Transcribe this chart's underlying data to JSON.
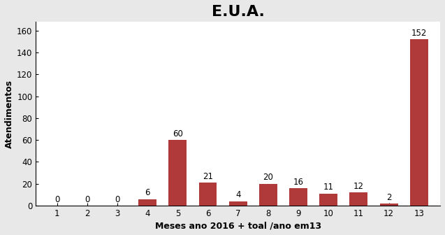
{
  "title": "E.U.A.",
  "xlabel": "Meses ano 2016 + toal /ano em13",
  "ylabel": "Atendimentos",
  "categories": [
    1,
    2,
    3,
    4,
    5,
    6,
    7,
    8,
    9,
    10,
    11,
    12,
    13
  ],
  "values": [
    0,
    0,
    0,
    6,
    60,
    21,
    4,
    20,
    16,
    11,
    12,
    2,
    152
  ],
  "bar_color": "#b03a3a",
  "ylim": [
    0,
    168
  ],
  "yticks": [
    0,
    20,
    40,
    60,
    80,
    100,
    120,
    140,
    160
  ],
  "background_color": "#e8e8e8",
  "plot_background": "#ffffff",
  "title_fontsize": 16,
  "label_fontsize": 9,
  "tick_fontsize": 8.5,
  "annotation_fontsize": 8.5
}
